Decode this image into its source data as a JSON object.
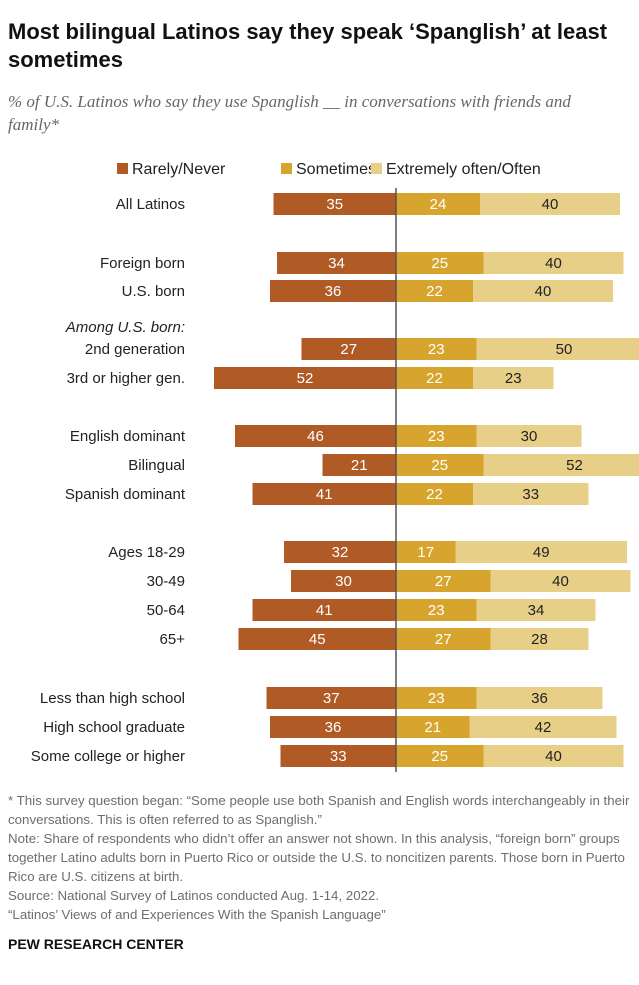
{
  "title": "Most bilingual Latinos say they speak ‘Spanglish’ at least sometimes",
  "subtitle": "% of U.S. Latinos who say they use Spanglish __ in conversations with friends and family*",
  "colors": {
    "rarely_never": "#b05a26",
    "sometimes": "#d7a52e",
    "often": "#e8cf87",
    "baseline": "#555555",
    "label_text": "#222222",
    "bar_text_light": "#ffffff",
    "bar_text_dark": "#222222"
  },
  "chart_data": {
    "type": "bar",
    "orientation": "horizontal-diverging",
    "legend_position": "top",
    "series": [
      {
        "name": "Rarely/Never",
        "values": [
          35,
          34,
          36,
          27,
          52,
          46,
          21,
          41,
          32,
          30,
          41,
          45,
          37,
          36,
          33
        ]
      },
      {
        "name": "Sometimes",
        "values": [
          24,
          25,
          22,
          23,
          22,
          23,
          25,
          22,
          17,
          27,
          23,
          27,
          23,
          21,
          25
        ]
      },
      {
        "name": "Extremely often/Often",
        "values": [
          40,
          40,
          40,
          50,
          23,
          30,
          52,
          33,
          49,
          40,
          34,
          28,
          36,
          42,
          40
        ]
      }
    ],
    "categories": [
      "All Latinos",
      "Foreign born",
      "U.S. born",
      "2nd generation",
      "3rd or higher gen.",
      "English dominant",
      "Bilingual",
      "Spanish dominant",
      "Ages 18-29",
      "30-49",
      "50-64",
      "65+",
      "Less than high school",
      "High school graduate",
      "Some college or higher"
    ],
    "group_headers": [
      {
        "text": "Among U.S. born:",
        "before_category": "2nd generation"
      }
    ]
  },
  "footnotes": [
    "* This survey question began: “Some people use both Spanish and English words interchangeably in their conversations. This is often referred to as Spanglish.”",
    "Note: Share of respondents who didn’t offer an answer not shown. In this analysis, “foreign born” groups together Latino adults born in Puerto Rico or outside the U.S. to noncitizen parents. Those born in Puerto Rico are U.S. citizens at birth.",
    "Source: National Survey of Latinos conducted Aug. 1-14, 2022.",
    "“Latinos’ Views of and Experiences With the Spanish Language”"
  ],
  "brand": "PEW RESEARCH CENTER"
}
